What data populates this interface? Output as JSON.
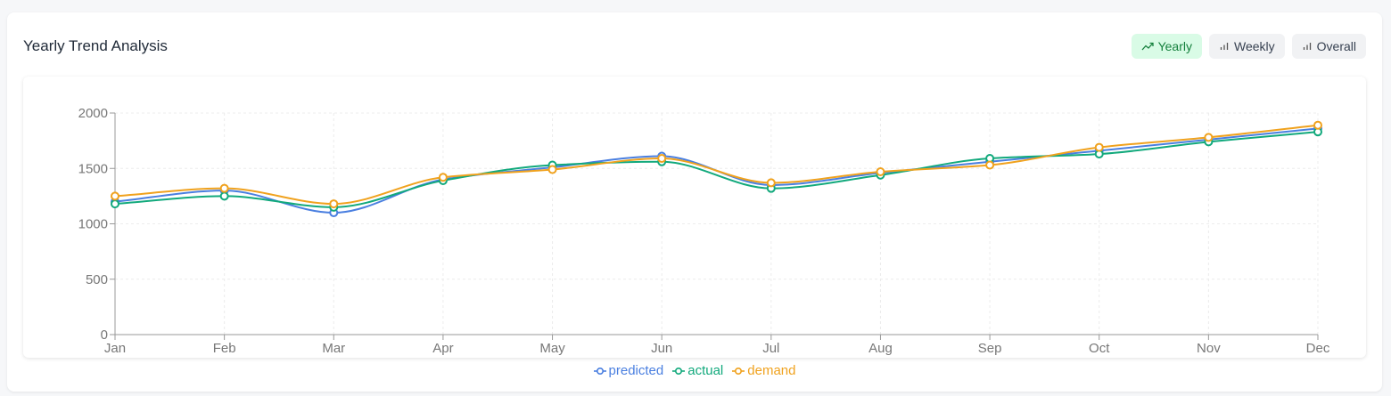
{
  "header": {
    "title": "Yearly Trend Analysis"
  },
  "toggles": [
    {
      "label": "Yearly",
      "icon": "trending-up-icon",
      "active": true
    },
    {
      "label": "Weekly",
      "icon": "bar-chart-icon",
      "active": false
    },
    {
      "label": "Overall",
      "icon": "bar-chart-icon",
      "active": false
    }
  ],
  "colors": {
    "predicted": "#4a7fe0",
    "actual": "#12a97c",
    "demand": "#f0a21e",
    "active_toggle_bg": "#d9fbe6",
    "active_toggle_text": "#15803d"
  },
  "chart_data": {
    "type": "line",
    "title": "",
    "xlabel": "",
    "ylabel": "",
    "categories": [
      "Jan",
      "Feb",
      "Mar",
      "Apr",
      "May",
      "Jun",
      "Jul",
      "Aug",
      "Sep",
      "Oct",
      "Nov",
      "Dec"
    ],
    "ylim": [
      0,
      2000
    ],
    "yticks": [
      0,
      500,
      1000,
      1500,
      2000
    ],
    "grid": true,
    "legend_position": "bottom-center",
    "series": [
      {
        "name": "predicted",
        "color": "#4a7fe0",
        "values": [
          1200,
          1300,
          1100,
          1400,
          1510,
          1610,
          1350,
          1460,
          1560,
          1660,
          1760,
          1860
        ]
      },
      {
        "name": "actual",
        "color": "#12a97c",
        "values": [
          1180,
          1250,
          1150,
          1390,
          1530,
          1560,
          1320,
          1440,
          1590,
          1630,
          1740,
          1830
        ]
      },
      {
        "name": "demand",
        "color": "#f0a21e",
        "values": [
          1250,
          1320,
          1180,
          1420,
          1490,
          1590,
          1370,
          1470,
          1530,
          1690,
          1780,
          1890
        ]
      }
    ]
  }
}
